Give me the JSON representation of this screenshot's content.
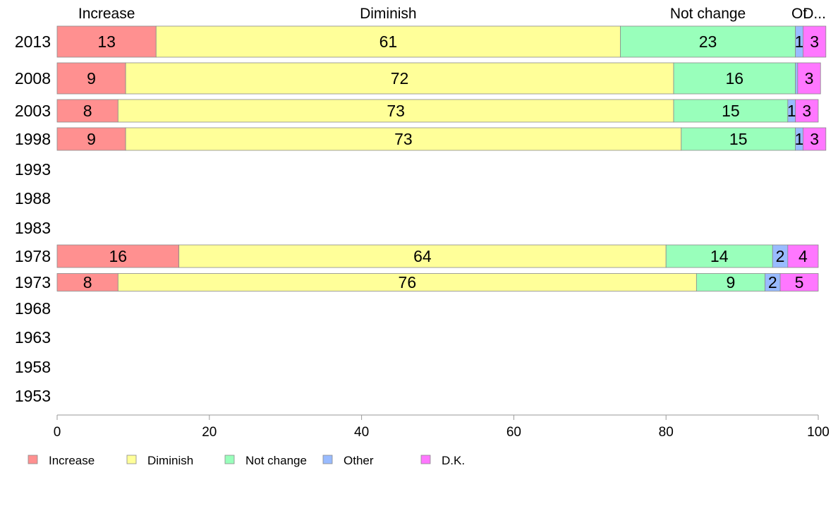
{
  "chart_data": {
    "type": "bar",
    "orientation": "horizontal",
    "stacked": true,
    "top_labels": [
      "Increase",
      "Diminish",
      "Not change",
      "Ot",
      "D..."
    ],
    "categories": [
      "2013",
      "2008",
      "2003",
      "1998",
      "1993",
      "1988",
      "1983",
      "1978",
      "1973",
      "1968",
      "1963",
      "1958",
      "1953"
    ],
    "series": [
      {
        "name": "Increase",
        "color": "#ff9090",
        "values": [
          13,
          9,
          8,
          9,
          null,
          null,
          null,
          16,
          8,
          null,
          null,
          null,
          null
        ]
      },
      {
        "name": "Diminish",
        "color": "#ffff99",
        "values": [
          61,
          72,
          73,
          73,
          null,
          null,
          null,
          64,
          76,
          null,
          null,
          null,
          null
        ]
      },
      {
        "name": "Not change",
        "color": "#99ffbb",
        "values": [
          23,
          16,
          15,
          15,
          null,
          null,
          null,
          14,
          9,
          null,
          null,
          null,
          null
        ]
      },
      {
        "name": "Other",
        "color": "#99bbff",
        "values": [
          1,
          0.3,
          1,
          1,
          null,
          null,
          null,
          2,
          2,
          null,
          null,
          null,
          null
        ]
      },
      {
        "name": "D.K.",
        "color": "#ff77ff",
        "values": [
          3,
          3,
          3,
          3,
          null,
          null,
          null,
          4,
          5,
          null,
          null,
          null,
          null
        ]
      }
    ],
    "data_labels": [
      [
        "13",
        "61",
        "23",
        "1",
        "3"
      ],
      [
        "9",
        "72",
        "16",
        "",
        "3"
      ],
      [
        "8",
        "73",
        "15",
        "1",
        "3"
      ],
      [
        "9",
        "73",
        "15",
        "1",
        "3"
      ],
      null,
      null,
      null,
      [
        "16",
        "64",
        "14",
        "2",
        "4"
      ],
      [
        "8",
        "76",
        "9",
        "2",
        "5"
      ],
      null,
      null,
      null,
      null
    ],
    "xlim": [
      0,
      100
    ],
    "x_ticks": [
      0,
      20,
      40,
      60,
      80,
      100
    ],
    "grid": false,
    "legend_position": "bottom-left"
  }
}
